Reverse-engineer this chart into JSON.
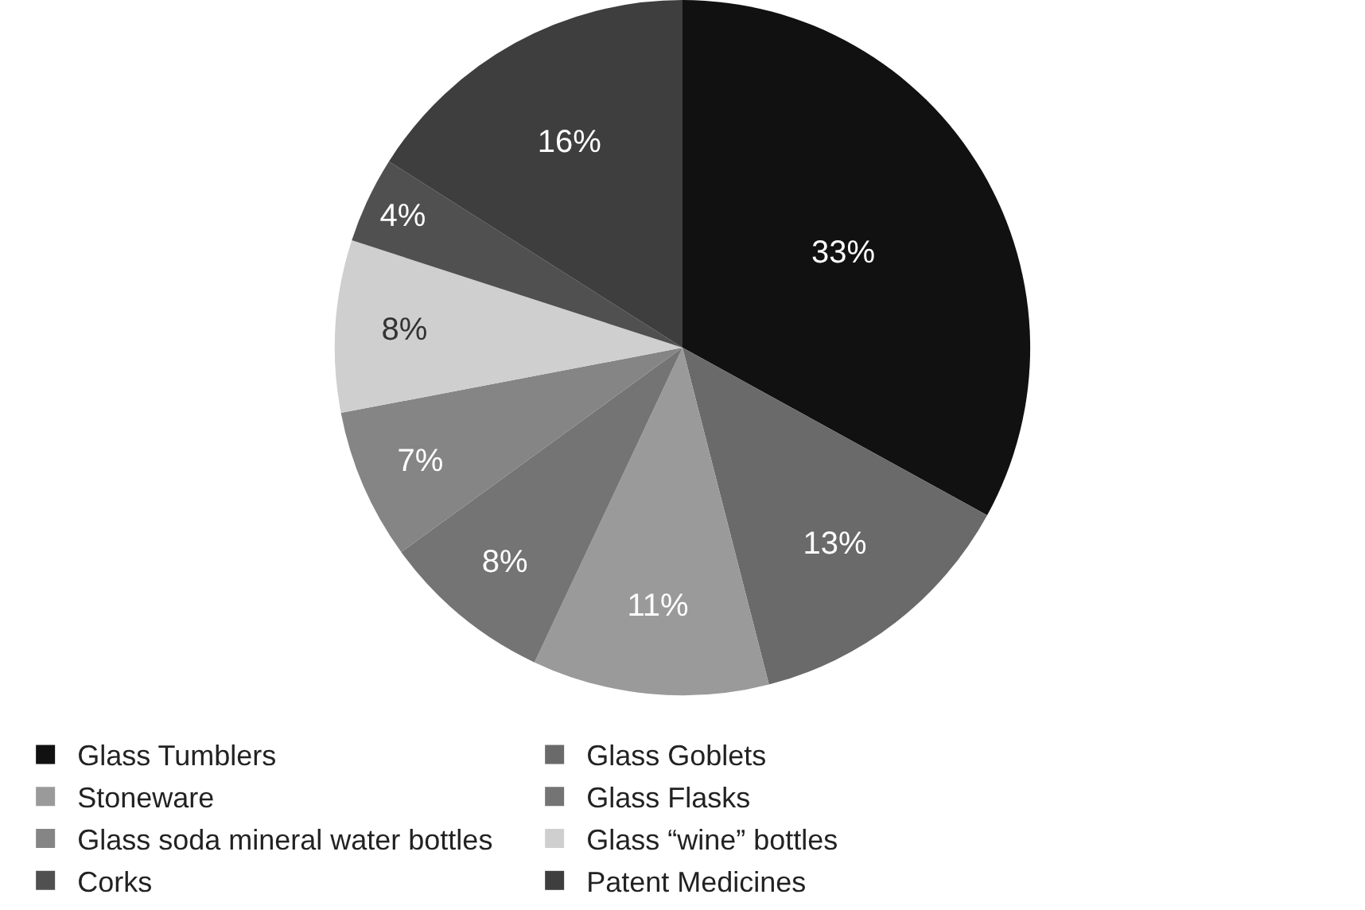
{
  "chart_data": {
    "type": "pie",
    "categories": [
      "Glass Tumblers",
      "Glass Goblets",
      "Stoneware",
      "Glass Flasks",
      "Glass soda mineral water bottles",
      "Glass “wine” bottles",
      "Corks",
      "Patent Medicines"
    ],
    "values": [
      33,
      13,
      11,
      8,
      7,
      8,
      4,
      16
    ],
    "colors": [
      "#111111",
      "#6a6a6a",
      "#9a9a9a",
      "#747474",
      "#858585",
      "#cfcfcf",
      "#505050",
      "#3e3e3e"
    ],
    "value_labels": [
      "33%",
      "13%",
      "11%",
      "8%",
      "7%",
      "8%",
      "4%",
      "16%"
    ],
    "legend": "bottom"
  }
}
